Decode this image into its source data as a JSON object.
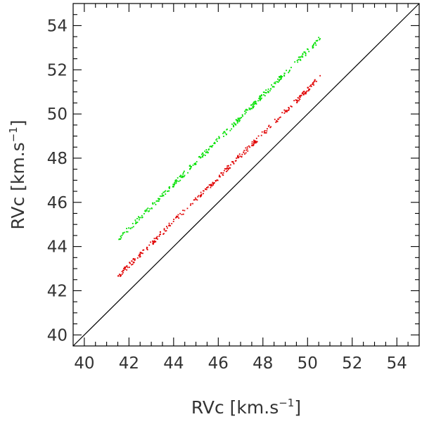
{
  "chart_data": {
    "type": "scatter",
    "title": "",
    "xlabel": "RVc [km.s^-1]",
    "ylabel": "RVc [km.s^-1]",
    "xlabel_parts": {
      "main": "RVc [km.s",
      "sup": "−1",
      "close": "]"
    },
    "ylabel_parts": {
      "main": "RVc [km.s",
      "sup": "−1",
      "close": "]"
    },
    "xlim": [
      39.5,
      55.0
    ],
    "ylim": [
      39.5,
      55.0
    ],
    "xticks": [
      40,
      42,
      44,
      46,
      48,
      50,
      52,
      54
    ],
    "yticks": [
      40,
      42,
      44,
      46,
      48,
      50,
      52,
      54
    ],
    "grid": false,
    "series": [
      {
        "name": "green-series",
        "color": "#00e000",
        "x_range": [
          41.5,
          50.6
        ],
        "y_at_x_min": 44.3,
        "y_at_x_max": 53.45,
        "scatter_spread": 0.12,
        "n_points": 320
      },
      {
        "name": "red-series",
        "color": "#e00000",
        "x_range": [
          41.5,
          50.6
        ],
        "y_at_x_min": 42.65,
        "y_at_x_max": 51.7,
        "scatter_spread": 0.12,
        "n_points": 320
      }
    ],
    "reference_line": {
      "name": "one-to-one-line",
      "type": "y=x",
      "color": "#000000"
    }
  }
}
